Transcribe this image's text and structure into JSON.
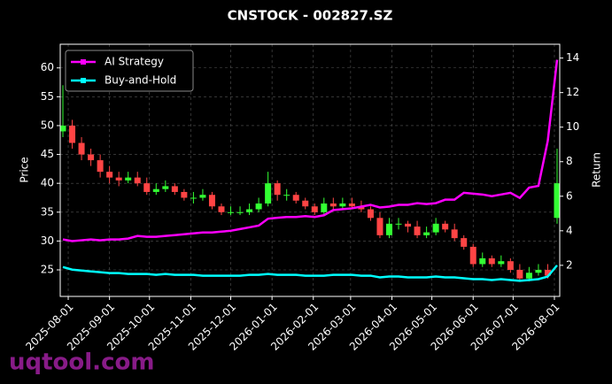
{
  "chart_data": {
    "type": "candlestick",
    "title": "CNSTOCK - 002827.SZ",
    "ylabel": "Price",
    "y2label": "Return",
    "x": [
      "2025-07-28",
      "2025-08-04",
      "2025-08-11",
      "2025-08-18",
      "2025-08-25",
      "2025-09-01",
      "2025-09-08",
      "2025-09-15",
      "2025-09-22",
      "2025-09-29",
      "2025-10-06",
      "2025-10-13",
      "2025-10-20",
      "2025-10-27",
      "2025-11-03",
      "2025-11-10",
      "2025-11-17",
      "2025-11-24",
      "2025-12-01",
      "2025-12-08",
      "2025-12-15",
      "2025-12-22",
      "2025-12-29",
      "2026-01-05",
      "2026-01-12",
      "2026-01-19",
      "2026-01-26",
      "2026-02-02",
      "2026-02-09",
      "2026-02-16",
      "2026-02-23",
      "2026-03-02",
      "2026-03-09",
      "2026-03-16",
      "2026-03-23",
      "2026-03-30",
      "2026-04-06",
      "2026-04-13",
      "2026-04-20",
      "2026-04-27",
      "2026-05-04",
      "2026-05-11",
      "2026-05-18",
      "2026-05-25",
      "2026-06-01",
      "2026-06-08",
      "2026-06-15",
      "2026-06-22",
      "2026-06-29",
      "2026-07-06",
      "2026-07-13",
      "2026-07-20",
      "2026-07-27",
      "2026-08-03"
    ],
    "open": [
      49,
      50,
      47,
      45,
      44,
      42,
      41,
      40.5,
      41,
      40,
      38.5,
      39,
      39.5,
      38.5,
      37.5,
      37.5,
      38,
      36,
      35,
      35,
      35,
      35.5,
      36.5,
      40,
      38,
      38,
      37,
      36,
      35,
      36.5,
      36,
      36.5,
      36,
      35.5,
      34,
      31,
      33,
      33,
      32.5,
      31,
      31.5,
      33,
      32,
      30.5,
      29,
      26,
      27,
      26,
      26.5,
      25,
      23.5,
      24.5,
      25,
      34
    ],
    "high": [
      57,
      51,
      48,
      46,
      45,
      43,
      42,
      42,
      42,
      41,
      40,
      40.5,
      40,
      39,
      38.5,
      39,
      38.5,
      36.5,
      36,
      36,
      36.5,
      37.5,
      42,
      40.5,
      39,
      38.5,
      37.5,
      36.5,
      37.5,
      37.5,
      37.5,
      37.5,
      37,
      36,
      35,
      34,
      34,
      33.5,
      33.5,
      32.5,
      34,
      33.5,
      33,
      31,
      29.5,
      28,
      27.5,
      27.5,
      27,
      26,
      25.5,
      26,
      26,
      46
    ],
    "low": [
      48,
      46,
      44,
      43,
      41,
      40,
      39.5,
      40,
      39.5,
      38,
      38,
      38.5,
      38,
      37,
      36.5,
      37,
      35.5,
      34.5,
      34.5,
      34.5,
      34.5,
      35,
      36,
      37,
      37,
      36.5,
      35.5,
      34.5,
      34.5,
      35.5,
      35.5,
      35.5,
      35,
      33.5,
      30.5,
      30.5,
      32,
      31.5,
      30.5,
      30.5,
      31,
      31.5,
      30,
      28.5,
      25.5,
      25.5,
      25.5,
      25.5,
      24.5,
      23,
      23,
      24,
      23.5,
      33
    ],
    "close": [
      50,
      47,
      45,
      44,
      42,
      41,
      40.5,
      41,
      40,
      38.5,
      39,
      39.5,
      38.5,
      37.5,
      37.5,
      38,
      36,
      35,
      35,
      35,
      35.5,
      36.5,
      40,
      38,
      38,
      37,
      36,
      35,
      36.5,
      36,
      36.5,
      36,
      35.5,
      34,
      31,
      33,
      33,
      32.5,
      31,
      31.5,
      33,
      32,
      30.5,
      29,
      26,
      27,
      26,
      26.5,
      25,
      23.5,
      24.5,
      25,
      24,
      40
    ],
    "up_color": "#33ff33",
    "down_color": "#ff4444",
    "series": [
      {
        "name": "AI Strategy",
        "color": "#ff00ff",
        "axis": "y2",
        "values": [
          3.5,
          3.4,
          3.45,
          3.5,
          3.45,
          3.5,
          3.5,
          3.55,
          3.7,
          3.65,
          3.65,
          3.7,
          3.75,
          3.8,
          3.85,
          3.9,
          3.9,
          3.95,
          4.0,
          4.1,
          4.2,
          4.3,
          4.7,
          4.75,
          4.8,
          4.8,
          4.85,
          4.8,
          4.9,
          5.2,
          5.25,
          5.3,
          5.4,
          5.5,
          5.35,
          5.4,
          5.5,
          5.5,
          5.6,
          5.55,
          5.6,
          5.8,
          5.8,
          6.2,
          6.15,
          6.1,
          6.0,
          6.1,
          6.2,
          5.9,
          6.5,
          6.6,
          9.2,
          13.9
        ]
      },
      {
        "name": "Buy-and-Hold",
        "color": "#00ffff",
        "axis": "y2",
        "values": [
          1.9,
          1.75,
          1.7,
          1.65,
          1.6,
          1.55,
          1.55,
          1.5,
          1.5,
          1.5,
          1.45,
          1.5,
          1.45,
          1.45,
          1.45,
          1.4,
          1.4,
          1.4,
          1.4,
          1.4,
          1.45,
          1.45,
          1.5,
          1.45,
          1.45,
          1.45,
          1.4,
          1.4,
          1.4,
          1.45,
          1.45,
          1.45,
          1.4,
          1.4,
          1.3,
          1.35,
          1.35,
          1.3,
          1.3,
          1.3,
          1.35,
          1.3,
          1.3,
          1.25,
          1.2,
          1.2,
          1.15,
          1.2,
          1.15,
          1.1,
          1.15,
          1.2,
          1.35,
          2.0
        ]
      }
    ],
    "xlim": [
      "2025-07-26",
      "2026-08-05"
    ],
    "xticks": [
      "2025-08-01",
      "2025-09-01",
      "2025-10-01",
      "2025-11-01",
      "2025-12-01",
      "2026-01-01",
      "2026-02-01",
      "2026-03-01",
      "2026-04-01",
      "2026-05-01",
      "2026-06-01",
      "2026-07-01",
      "2026-08-01"
    ],
    "ylim": [
      20.4,
      64.1
    ],
    "yticks": [
      25,
      30,
      35,
      40,
      45,
      50,
      55,
      60
    ],
    "y2lim": [
      0.2,
      14.8
    ],
    "y2ticks": [
      2,
      4,
      6,
      8,
      10,
      12,
      14
    ],
    "grid": true,
    "legend": "upper left"
  },
  "watermark": "uqtool.com"
}
